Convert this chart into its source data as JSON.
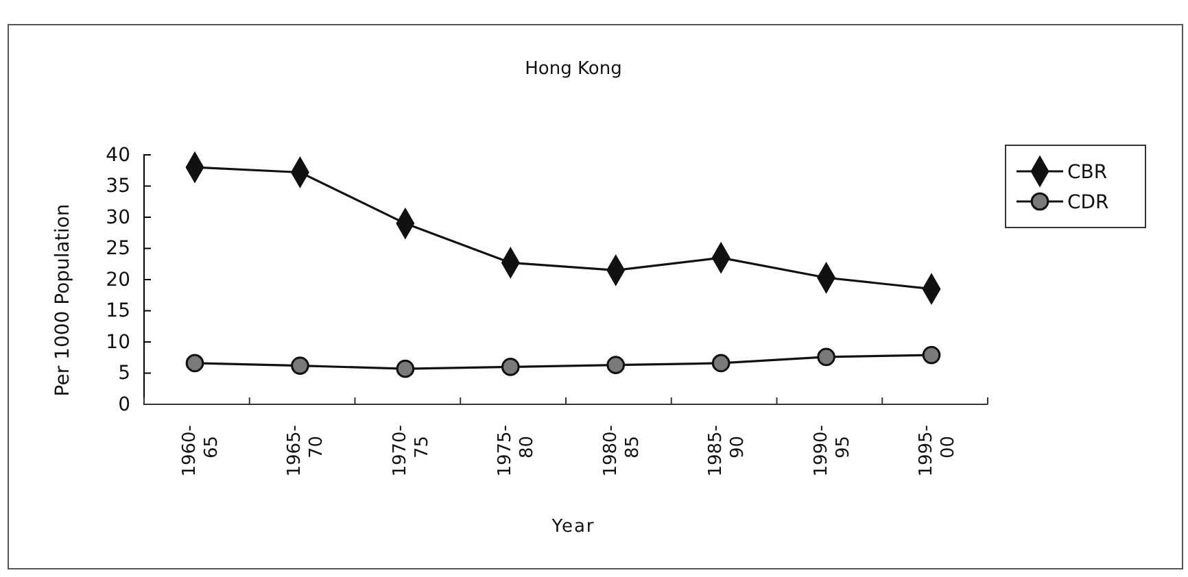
{
  "chart_data": {
    "type": "line",
    "title": "Hong Kong",
    "xlabel": "Year",
    "ylabel": "Per 1000 Population",
    "categories": [
      "1960-65",
      "1965-70",
      "1970-75",
      "1975-80",
      "1980-85",
      "1985-90",
      "1990-95",
      "1995-00"
    ],
    "series": [
      {
        "name": "CBR",
        "color": "#111111",
        "marker": "diamond",
        "values": [
          38,
          37.2,
          29,
          22.7,
          21.5,
          23.5,
          20.3,
          18.5
        ]
      },
      {
        "name": "CDR",
        "color": "#7a7a7a",
        "marker": "circle",
        "values": [
          6.6,
          6.2,
          5.7,
          6,
          6.3,
          6.6,
          7.6,
          7.9
        ]
      }
    ],
    "ylim": [
      0,
      40
    ],
    "yticks": [
      0,
      5,
      10,
      15,
      20,
      25,
      30,
      35,
      40
    ],
    "grid": false,
    "legend": "top right",
    "line_style": "solid"
  }
}
